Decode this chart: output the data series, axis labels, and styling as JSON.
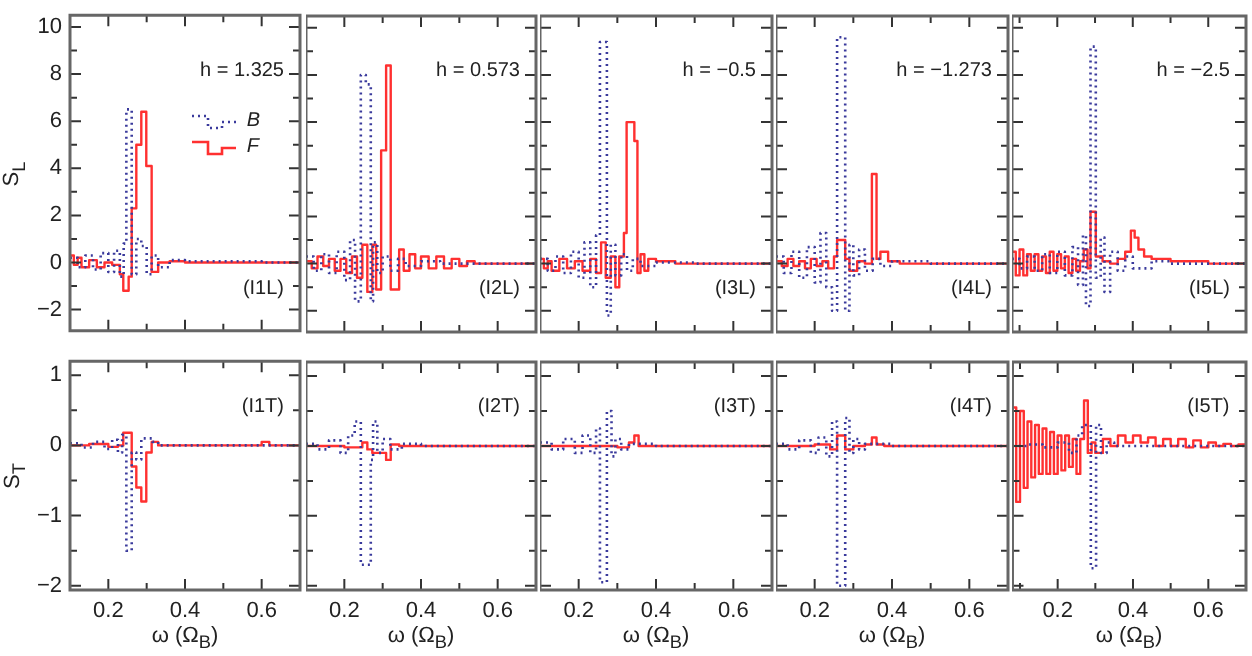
{
  "chart_data": [
    {
      "type": "step",
      "ylabel": "S$_{L}$",
      "annotations": [
        "h = 1.325",
        "(I1L)"
      ],
      "legend": "top right",
      "tick_labels": "y",
      "xlim": [
        0.1,
        0.7
      ],
      "xticks": [
        0.2,
        {
          "value": 0.3,
          "label": null
        },
        0.4,
        {
          "value": 0.5,
          "label": null
        },
        0.6
      ],
      "ylim": [
        -2.9,
        10.5
      ],
      "yticks": [
        -2,
        {
          "value": -1,
          "label": null
        },
        0,
        {
          "value": 1,
          "label": null
        },
        2,
        {
          "value": 3,
          "label": null
        },
        4,
        {
          "value": 5,
          "label": null
        },
        6,
        {
          "value": 7,
          "label": null
        },
        8,
        {
          "value": 9,
          "label": null
        },
        10
      ],
      "series": [
        {
          "name": "B",
          "color": "#3a3a9c",
          "line_style": "dotted",
          "x": [
            0.1,
            0.12,
            0.14,
            0.16,
            0.18,
            0.2,
            0.215,
            0.23,
            0.24,
            0.247,
            0.261,
            0.273,
            0.286,
            0.3,
            0.313,
            0.33,
            0.36,
            0.4,
            0.5,
            0.6,
            0.7
          ],
          "values": [
            0.2,
            -0.2,
            0.3,
            -0.3,
            0.4,
            -0.4,
            0.5,
            -0.6,
            0.8,
            6.5,
            -0.5,
            1.0,
            0.7,
            -0.5,
            0.3,
            -0.2,
            0.1,
            0.05,
            0.05,
            0,
            0
          ]
        },
        {
          "name": "F",
          "color": "#ff3030",
          "line_style": "solid",
          "x": [
            0.1,
            0.11,
            0.12,
            0.13,
            0.15,
            0.17,
            0.19,
            0.21,
            0.23,
            0.239,
            0.253,
            0.261,
            0.273,
            0.286,
            0.299,
            0.313,
            0.33,
            0.36,
            0.4,
            0.5,
            0.6,
            0.7
          ],
          "values": [
            0.3,
            -0.1,
            0.2,
            -0.2,
            0.1,
            -0.2,
            0,
            -0.1,
            -0.5,
            -1.2,
            -0.6,
            2.3,
            5.0,
            6.4,
            4.1,
            -0.4,
            0,
            0.05,
            0,
            0,
            0,
            0
          ]
        }
      ]
    },
    {
      "type": "step",
      "annotations": [
        "h = 0.573",
        "(I2L)"
      ],
      "tick_labels": false,
      "xlim": [
        0.1,
        0.7
      ],
      "xticks": [
        0.2,
        {
          "value": 0.3,
          "label": null
        },
        0.4,
        {
          "value": 0.5,
          "label": null
        },
        0.6
      ],
      "ylim": [
        -2.9,
        10.5
      ],
      "yticks": [
        -2,
        {
          "value": -1,
          "label": null
        },
        0,
        {
          "value": 1,
          "label": null
        },
        2,
        {
          "value": 3,
          "label": null
        },
        4,
        {
          "value": 5,
          "label": null
        },
        6,
        {
          "value": 7,
          "label": null
        },
        8,
        {
          "value": 9,
          "label": null
        },
        10
      ],
      "series": [
        {
          "color": "#3a3a9c",
          "line_style": "dotted",
          "x": [
            0.1,
            0.12,
            0.14,
            0.16,
            0.18,
            0.2,
            0.215,
            0.228,
            0.243,
            0.256,
            0.269,
            0.275,
            0.286,
            0.3,
            0.32,
            0.34,
            0.36,
            0.4,
            0.45,
            0.5,
            0.6,
            0.7
          ],
          "values": [
            0.3,
            -0.3,
            0.4,
            -0.4,
            0.5,
            -0.7,
            1.0,
            -1.6,
            8.0,
            7.6,
            -1.6,
            0.9,
            -0.4,
            0.3,
            -0.3,
            0.2,
            -0.1,
            0.1,
            0,
            0,
            0,
            0
          ]
        },
        {
          "color": "#ff3030",
          "line_style": "solid",
          "x": [
            0.1,
            0.115,
            0.13,
            0.145,
            0.16,
            0.175,
            0.19,
            0.205,
            0.22,
            0.233,
            0.247,
            0.26,
            0.273,
            0.283,
            0.296,
            0.309,
            0.321,
            0.343,
            0.355,
            0.37,
            0.385,
            0.4,
            0.42,
            0.44,
            0.46,
            0.48,
            0.5,
            0.52,
            0.54,
            0.6,
            0.7
          ],
          "values": [
            0.1,
            -0.2,
            0.3,
            -0.1,
            0.2,
            -0.3,
            0.2,
            -0.4,
            0.3,
            -0.6,
            0.8,
            -1.2,
            0.8,
            -1.1,
            4.8,
            8.4,
            -1.1,
            0.6,
            -0.3,
            0.4,
            -0.2,
            0.3,
            -0.2,
            0.3,
            -0.2,
            0.2,
            -0.1,
            0.1,
            0,
            0,
            0
          ]
        }
      ]
    },
    {
      "type": "step",
      "annotations": [
        "h = −0.5",
        "(I3L)"
      ],
      "tick_labels": false,
      "xlim": [
        0.1,
        0.7
      ],
      "xticks": [
        0.2,
        {
          "value": 0.3,
          "label": null
        },
        0.4,
        {
          "value": 0.5,
          "label": null
        },
        0.6
      ],
      "ylim": [
        -2.9,
        10.5
      ],
      "yticks": [
        -2,
        {
          "value": -1,
          "label": null
        },
        0,
        {
          "value": 1,
          "label": null
        },
        2,
        {
          "value": 3,
          "label": null
        },
        4,
        {
          "value": 5,
          "label": null
        },
        6,
        {
          "value": 7,
          "label": null
        },
        8,
        {
          "value": 9,
          "label": null
        },
        10
      ],
      "series": [
        {
          "color": "#3a3a9c",
          "line_style": "dotted",
          "x": [
            0.1,
            0.12,
            0.14,
            0.16,
            0.18,
            0.2,
            0.215,
            0.23,
            0.245,
            0.255,
            0.273,
            0.283,
            0.295,
            0.31,
            0.325,
            0.34,
            0.36,
            0.4,
            0.5,
            0.6,
            0.7
          ],
          "values": [
            0.2,
            -0.3,
            0.3,
            -0.4,
            0.5,
            -0.6,
            0.9,
            -1.0,
            1.2,
            9.4,
            -2.2,
            0.8,
            -0.5,
            0.4,
            -0.3,
            0.2,
            -0.1,
            0.05,
            0,
            0,
            0
          ]
        },
        {
          "color": "#ff3030",
          "line_style": "solid",
          "x": [
            0.1,
            0.11,
            0.12,
            0.13,
            0.15,
            0.17,
            0.19,
            0.21,
            0.23,
            0.245,
            0.258,
            0.27,
            0.283,
            0.295,
            0.305,
            0.317,
            0.324,
            0.344,
            0.352,
            0.36,
            0.37,
            0.38,
            0.4,
            0.45,
            0.5,
            0.6,
            0.7
          ],
          "values": [
            0.2,
            -0.2,
            0.1,
            -0.3,
            0.2,
            -0.2,
            0.1,
            -0.3,
            0.2,
            -0.4,
            0.9,
            -0.6,
            0.3,
            -1.0,
            0.3,
            1.3,
            6.0,
            5.2,
            -0.4,
            0.4,
            -0.3,
            0.2,
            0.1,
            0,
            0,
            0,
            0
          ]
        }
      ]
    },
    {
      "type": "step",
      "annotations": [
        "h = −1.273",
        "(I4L)"
      ],
      "tick_labels": false,
      "xlim": [
        0.1,
        0.7
      ],
      "xticks": [
        0.2,
        {
          "value": 0.3,
          "label": null
        },
        0.4,
        {
          "value": 0.5,
          "label": null
        },
        0.6
      ],
      "ylim": [
        -2.9,
        10.5
      ],
      "yticks": [
        -2,
        {
          "value": -1,
          "label": null
        },
        0,
        {
          "value": 1,
          "label": null
        },
        2,
        {
          "value": 3,
          "label": null
        },
        4,
        {
          "value": 5,
          "label": null
        },
        6,
        {
          "value": 7,
          "label": null
        },
        8,
        {
          "value": 9,
          "label": null
        },
        10
      ],
      "series": [
        {
          "color": "#3a3a9c",
          "line_style": "dotted",
          "x": [
            0.1,
            0.12,
            0.14,
            0.16,
            0.18,
            0.2,
            0.215,
            0.23,
            0.245,
            0.258,
            0.279,
            0.29,
            0.3,
            0.315,
            0.33,
            0.35,
            0.37,
            0.4,
            0.5,
            0.6,
            0.7
          ],
          "values": [
            0.3,
            -0.4,
            0.5,
            -0.6,
            0.7,
            -0.8,
            1.3,
            -1.0,
            -2.0,
            9.6,
            -2.0,
            0.8,
            -0.5,
            0.6,
            -0.3,
            0.2,
            -0.1,
            0.1,
            0,
            0,
            0
          ]
        },
        {
          "color": "#ff3030",
          "line_style": "solid",
          "x": [
            0.1,
            0.115,
            0.13,
            0.145,
            0.16,
            0.175,
            0.19,
            0.205,
            0.22,
            0.235,
            0.25,
            0.258,
            0.279,
            0.29,
            0.31,
            0.33,
            0.348,
            0.36,
            0.37,
            0.39,
            0.42,
            0.5,
            0.6,
            0.7
          ],
          "values": [
            0.1,
            -0.1,
            0.2,
            -0.1,
            0.1,
            -0.2,
            0.2,
            -0.1,
            0.1,
            -0.2,
            0.3,
            1.0,
            0.2,
            -0.3,
            0.1,
            0,
            3.8,
            0.2,
            0.5,
            0.1,
            0,
            0,
            0,
            0
          ]
        }
      ]
    },
    {
      "type": "step",
      "annotations": [
        "h = −2.5",
        "(I5L)"
      ],
      "tick_labels": false,
      "xlim": [
        0.08,
        0.7
      ],
      "xticks": [
        {
          "value": 0.1,
          "label": null
        },
        0.2,
        {
          "value": 0.3,
          "label": null
        },
        0.4,
        {
          "value": 0.5,
          "label": null
        },
        0.6
      ],
      "ylim": [
        -2.9,
        10.5
      ],
      "yticks": [
        -2,
        {
          "value": -1,
          "label": null
        },
        0,
        {
          "value": 1,
          "label": null
        },
        2,
        {
          "value": 3,
          "label": null
        },
        4,
        {
          "value": 5,
          "label": null
        },
        6,
        {
          "value": 7,
          "label": null
        },
        8,
        {
          "value": 9,
          "label": null
        },
        10
      ],
      "series": [
        {
          "color": "#3a3a9c",
          "line_style": "dotted",
          "x": [
            0.08,
            0.1,
            0.12,
            0.14,
            0.16,
            0.18,
            0.2,
            0.22,
            0.24,
            0.255,
            0.268,
            0.276,
            0.288,
            0.302,
            0.315,
            0.325,
            0.34,
            0.36,
            0.38,
            0.4,
            0.45,
            0.5,
            0.6,
            0.7
          ],
          "values": [
            0.2,
            -0.2,
            0.3,
            -0.3,
            0.4,
            -0.4,
            0.5,
            -0.5,
            0.7,
            -0.9,
            1.2,
            -1.8,
            9.2,
            -0.6,
            1.1,
            -1.2,
            0.5,
            -0.3,
            0.3,
            -0.2,
            0.1,
            0,
            0,
            0
          ]
        },
        {
          "color": "#ff3030",
          "line_style": "solid",
          "x": [
            0.08,
            0.09,
            0.1,
            0.11,
            0.12,
            0.13,
            0.14,
            0.15,
            0.16,
            0.17,
            0.18,
            0.19,
            0.2,
            0.21,
            0.22,
            0.23,
            0.24,
            0.25,
            0.26,
            0.27,
            0.28,
            0.288,
            0.302,
            0.32,
            0.34,
            0.36,
            0.38,
            0.395,
            0.405,
            0.415,
            0.43,
            0.45,
            0.5,
            0.6,
            0.7
          ],
          "values": [
            0.5,
            -0.5,
            0.6,
            -0.5,
            0.4,
            -0.3,
            0.4,
            -0.3,
            0.3,
            -0.4,
            0.5,
            -0.3,
            0.4,
            -0.2,
            0.3,
            -0.4,
            0.2,
            -0.3,
            0.1,
            0.6,
            -0.2,
            2.2,
            0.3,
            0.1,
            0,
            0.2,
            0.5,
            1.4,
            1.1,
            0.6,
            0.3,
            0.2,
            0.1,
            0,
            0
          ]
        }
      ]
    },
    {
      "type": "step",
      "ylabel": "S$_{T}$",
      "xlabel": "ω (Ω$_{B}$)",
      "annotations": [
        "(I1T)"
      ],
      "xlim": [
        0.1,
        0.7
      ],
      "xticks": [
        0.2,
        {
          "value": 0.3,
          "label": null
        },
        0.4,
        {
          "value": 0.5,
          "label": null
        },
        0.6
      ],
      "ylim": [
        -2.06,
        1.2
      ],
      "yticks": [
        1,
        {
          "value": 0.5,
          "label": null
        },
        0,
        {
          "value": -0.5,
          "label": null
        },
        -1,
        {
          "value": -1.5,
          "label": null
        },
        -2
      ],
      "series": [
        {
          "color": "#3a3a9c",
          "line_style": "dotted",
          "x": [
            0.1,
            0.13,
            0.16,
            0.19,
            0.21,
            0.225,
            0.236,
            0.247,
            0.261,
            0.273,
            0.286,
            0.3,
            0.315,
            0.33,
            0.36,
            0.4,
            0.5,
            0.6,
            0.7
          ],
          "values": [
            0.03,
            -0.03,
            0.05,
            -0.05,
            0.08,
            -0.1,
            0.15,
            -1.5,
            -0.1,
            -0.2,
            0.1,
            0.1,
            0.05,
            0,
            0,
            0,
            0,
            0,
            0
          ]
        },
        {
          "color": "#ff3030",
          "line_style": "solid",
          "x": [
            0.1,
            0.15,
            0.2,
            0.225,
            0.239,
            0.261,
            0.273,
            0.286,
            0.299,
            0.313,
            0.33,
            0.4,
            0.6,
            0.62,
            0.7
          ],
          "values": [
            0,
            0.02,
            -0.02,
            0,
            0.18,
            -0.3,
            -0.6,
            -0.8,
            -0.1,
            0.05,
            0,
            0,
            0.05,
            0,
            0
          ]
        }
      ]
    },
    {
      "type": "step",
      "xlabel": "ω (Ω$_{B}$)",
      "annotations": [
        "(I2T)"
      ],
      "tick_labels": "x",
      "xlim": [
        0.1,
        0.7
      ],
      "xticks": [
        0.2,
        {
          "value": 0.3,
          "label": null
        },
        0.4,
        {
          "value": 0.5,
          "label": null
        },
        0.6
      ],
      "ylim": [
        -2.06,
        1.2
      ],
      "yticks": [
        1,
        {
          "value": 0.5,
          "label": null
        },
        0,
        {
          "value": -0.5,
          "label": null
        },
        -1,
        {
          "value": -1.5,
          "label": null
        },
        -2
      ],
      "series": [
        {
          "color": "#3a3a9c",
          "line_style": "dotted",
          "x": [
            0.1,
            0.13,
            0.16,
            0.19,
            0.21,
            0.227,
            0.243,
            0.269,
            0.275,
            0.286,
            0.3,
            0.32,
            0.35,
            0.4,
            0.5,
            0.6,
            0.7
          ],
          "values": [
            0.03,
            -0.05,
            0.08,
            -0.1,
            0.15,
            0.35,
            -1.7,
            -0.2,
            0.35,
            -0.1,
            0.1,
            -0.05,
            0.03,
            0,
            0,
            0,
            0
          ]
        },
        {
          "color": "#ff3030",
          "line_style": "solid",
          "x": [
            0.1,
            0.2,
            0.247,
            0.26,
            0.273,
            0.296,
            0.309,
            0.321,
            0.343,
            0.4,
            0.7
          ],
          "values": [
            0,
            -0.02,
            0.05,
            -0.05,
            -0.1,
            -0.1,
            -0.2,
            0.02,
            0,
            0,
            0
          ]
        }
      ]
    },
    {
      "type": "step",
      "xlabel": "ω (Ω$_{B}$)",
      "annotations": [
        "(I3T)"
      ],
      "tick_labels": "x",
      "xlim": [
        0.1,
        0.7
      ],
      "xticks": [
        0.2,
        {
          "value": 0.3,
          "label": null
        },
        0.4,
        {
          "value": 0.5,
          "label": null
        },
        0.6
      ],
      "ylim": [
        -2.06,
        1.2
      ],
      "yticks": [
        1,
        {
          "value": 0.5,
          "label": null
        },
        0,
        {
          "value": -0.5,
          "label": null
        },
        -1,
        {
          "value": -1.5,
          "label": null
        },
        -2
      ],
      "series": [
        {
          "color": "#3a3a9c",
          "line_style": "dotted",
          "x": [
            0.1,
            0.13,
            0.16,
            0.19,
            0.21,
            0.23,
            0.245,
            0.255,
            0.273,
            0.285,
            0.295,
            0.31,
            0.33,
            0.4,
            0.5,
            0.7
          ],
          "values": [
            0.05,
            -0.05,
            0.1,
            -0.1,
            0.15,
            -0.1,
            0.25,
            -1.95,
            0.5,
            -0.15,
            0.1,
            -0.05,
            0.03,
            0,
            0,
            0
          ]
        },
        {
          "color": "#ff3030",
          "line_style": "solid",
          "x": [
            0.1,
            0.2,
            0.3,
            0.33,
            0.344,
            0.355,
            0.4,
            0.7
          ],
          "values": [
            0,
            0,
            -0.02,
            0.05,
            0.15,
            0,
            0,
            0
          ]
        }
      ]
    },
    {
      "type": "step",
      "xlabel": "ω (Ω$_{B}$)",
      "annotations": [
        "(I4T)"
      ],
      "tick_labels": "x",
      "xlim": [
        0.1,
        0.7
      ],
      "xticks": [
        0.2,
        {
          "value": 0.3,
          "label": null
        },
        0.4,
        {
          "value": 0.5,
          "label": null
        },
        0.6
      ],
      "ylim": [
        -2.06,
        1.2
      ],
      "yticks": [
        1,
        {
          "value": 0.5,
          "label": null
        },
        0,
        {
          "value": -0.5,
          "label": null
        },
        -1,
        {
          "value": -1.5,
          "label": null
        },
        -2
      ],
      "series": [
        {
          "color": "#3a3a9c",
          "line_style": "dotted",
          "x": [
            0.1,
            0.13,
            0.16,
            0.19,
            0.21,
            0.23,
            0.245,
            0.258,
            0.279,
            0.29,
            0.3,
            0.315,
            0.33,
            0.4,
            0.5,
            0.7
          ],
          "values": [
            0.03,
            -0.05,
            0.08,
            -0.1,
            0.12,
            -0.15,
            0.35,
            -2.0,
            0.4,
            -0.1,
            0.1,
            -0.05,
            0.03,
            0,
            0,
            0
          ]
        },
        {
          "color": "#ff3030",
          "line_style": "solid",
          "x": [
            0.1,
            0.2,
            0.24,
            0.258,
            0.279,
            0.3,
            0.33,
            0.348,
            0.36,
            0.38,
            0.5,
            0.7
          ],
          "values": [
            0,
            0.02,
            -0.05,
            0.15,
            -0.05,
            0,
            0.02,
            0.12,
            0.02,
            0,
            0,
            0
          ]
        }
      ]
    },
    {
      "type": "step",
      "xlabel": "ω (Ω$_{B}$)",
      "annotations": [
        "(I5T)"
      ],
      "tick_labels": "x",
      "xlim": [
        0.08,
        0.7
      ],
      "xticks": [
        {
          "value": 0.1,
          "label": null
        },
        0.2,
        {
          "value": 0.3,
          "label": null
        },
        0.4,
        {
          "value": 0.5,
          "label": null
        },
        0.6
      ],
      "ylim": [
        -2.06,
        1.2
      ],
      "yticks": [
        1,
        {
          "value": 0.5,
          "label": null
        },
        0,
        {
          "value": -0.5,
          "label": null
        },
        -1,
        {
          "value": -1.5,
          "label": null
        },
        -2
      ],
      "series": [
        {
          "color": "#3a3a9c",
          "line_style": "dotted",
          "x": [
            0.08,
            0.12,
            0.16,
            0.2,
            0.23,
            0.25,
            0.265,
            0.276,
            0.288,
            0.302,
            0.315,
            0.33,
            0.35,
            0.4,
            0.5,
            0.7
          ],
          "values": [
            0,
            0.02,
            -0.02,
            0.05,
            -0.1,
            0.15,
            0.3,
            0.3,
            -1.75,
            0.3,
            -0.1,
            0.05,
            0,
            0,
            0,
            0
          ]
        },
        {
          "color": "#ff3030",
          "line_style": "solid",
          "x": [
            0.08,
            0.09,
            0.1,
            0.11,
            0.12,
            0.13,
            0.14,
            0.15,
            0.16,
            0.17,
            0.18,
            0.19,
            0.2,
            0.21,
            0.22,
            0.23,
            0.24,
            0.25,
            0.26,
            0.27,
            0.28,
            0.29,
            0.3,
            0.32,
            0.34,
            0.36,
            0.38,
            0.4,
            0.42,
            0.44,
            0.46,
            0.48,
            0.5,
            0.52,
            0.54,
            0.56,
            0.58,
            0.6,
            0.62,
            0.64,
            0.66,
            0.68,
            0.7
          ],
          "values": [
            0.55,
            -0.8,
            0.5,
            -0.6,
            0.35,
            -0.45,
            0.3,
            -0.4,
            0.25,
            -0.4,
            0.2,
            -0.4,
            0.15,
            -0.35,
            0.15,
            -0.3,
            0.1,
            -0.4,
            0.1,
            0.65,
            -0.1,
            0.05,
            -0.1,
            0.1,
            0,
            0.15,
            0.05,
            0.15,
            0.05,
            0.12,
            0,
            0.1,
            0,
            0.1,
            -0.02,
            0.08,
            -0.02,
            0.05,
            0,
            0.03,
            0,
            0.02,
            0
          ]
        }
      ]
    }
  ]
}
